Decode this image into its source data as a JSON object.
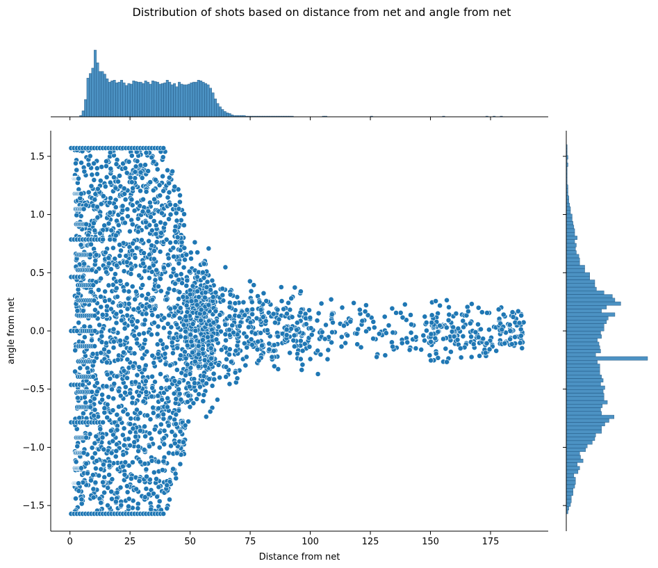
{
  "title": "Distribution of shots based on distance from net and angle from net",
  "chart_data": {
    "type": "scatter",
    "title": "Distribution of shots based on distance from net and angle from net",
    "xlabel": "Distance from net",
    "ylabel": "angle from net",
    "xlim": [
      -8,
      199
    ],
    "ylim": [
      -1.72,
      1.72
    ],
    "x_ticks": [
      0,
      25,
      50,
      75,
      100,
      125,
      150,
      175
    ],
    "y_ticks": [
      -1.5,
      -1.0,
      -0.5,
      0.0,
      0.5,
      1.0,
      1.5
    ],
    "y_tick_labels": [
      "−1.5",
      "−1.0",
      "−0.5",
      "0.0",
      "0.5",
      "1.0",
      "1.5"
    ],
    "grid": false,
    "color": "#1f77b4",
    "marginal_top": {
      "type": "histogram",
      "bin_width": 1,
      "x_start": 0,
      "counts": [
        0,
        0,
        0,
        0,
        2,
        9,
        26,
        58,
        65,
        73,
        100,
        81,
        68,
        68,
        64,
        57,
        52,
        54,
        55,
        51,
        52,
        55,
        51,
        47,
        50,
        49,
        54,
        53,
        52,
        52,
        50,
        54,
        52,
        49,
        54,
        53,
        52,
        49,
        50,
        51,
        55,
        52,
        48,
        50,
        45,
        52,
        49,
        48,
        48,
        49,
        51,
        52,
        52,
        55,
        54,
        52,
        50,
        48,
        43,
        36,
        27,
        20,
        15,
        11,
        8,
        6,
        5,
        3,
        2,
        2,
        2,
        2,
        2,
        1,
        1,
        1,
        1,
        1,
        1,
        1,
        1,
        1,
        1,
        1,
        1,
        1,
        1,
        1,
        1,
        1,
        1,
        1,
        1,
        0,
        0,
        0,
        0,
        0,
        0,
        0,
        0,
        0,
        0,
        0,
        0,
        1,
        1,
        0,
        0,
        0,
        0,
        0,
        0,
        0,
        0,
        0,
        0,
        0,
        0,
        0,
        0,
        0,
        0,
        0,
        0,
        1,
        0,
        0,
        0,
        0,
        0,
        0,
        0,
        0,
        0,
        0,
        0,
        0,
        0,
        0,
        0,
        0,
        0,
        0,
        0,
        0,
        0,
        0,
        0,
        0,
        0,
        0,
        0,
        0,
        0,
        1,
        0,
        0,
        0,
        0,
        0,
        0,
        0,
        0,
        0,
        0,
        0,
        0,
        0,
        0,
        0,
        0,
        0,
        1,
        0,
        0,
        1,
        0,
        0,
        1,
        0,
        0,
        0,
        0,
        0,
        0,
        0,
        0,
        0,
        0,
        0,
        0,
        0
      ]
    },
    "marginal_right": {
      "type": "histogram",
      "bin_width": 0.0314,
      "y_start": -1.5708,
      "counts": [
        2,
        3,
        5,
        6,
        6,
        8,
        8,
        10,
        11,
        11,
        9,
        14,
        16,
        13,
        20,
        17,
        16,
        23,
        25,
        31,
        34,
        35,
        42,
        42,
        46,
        51,
        57,
        42,
        41,
        43,
        49,
        45,
        45,
        44,
        46,
        41,
        44,
        42,
        40,
        40,
        40,
        37,
        97,
        35,
        41,
        40,
        39,
        37,
        42,
        41,
        45,
        45,
        48,
        50,
        58,
        42,
        48,
        65,
        58,
        55,
        45,
        36,
        34,
        34,
        28,
        28,
        22,
        22,
        16,
        16,
        15,
        12,
        11,
        12,
        10,
        13,
        10,
        10,
        9,
        8,
        7,
        7,
        5,
        5,
        4,
        3,
        3,
        2,
        2,
        2,
        1,
        1,
        1,
        1,
        1,
        2,
        1,
        2,
        1,
        1,
        1
      ]
    }
  }
}
